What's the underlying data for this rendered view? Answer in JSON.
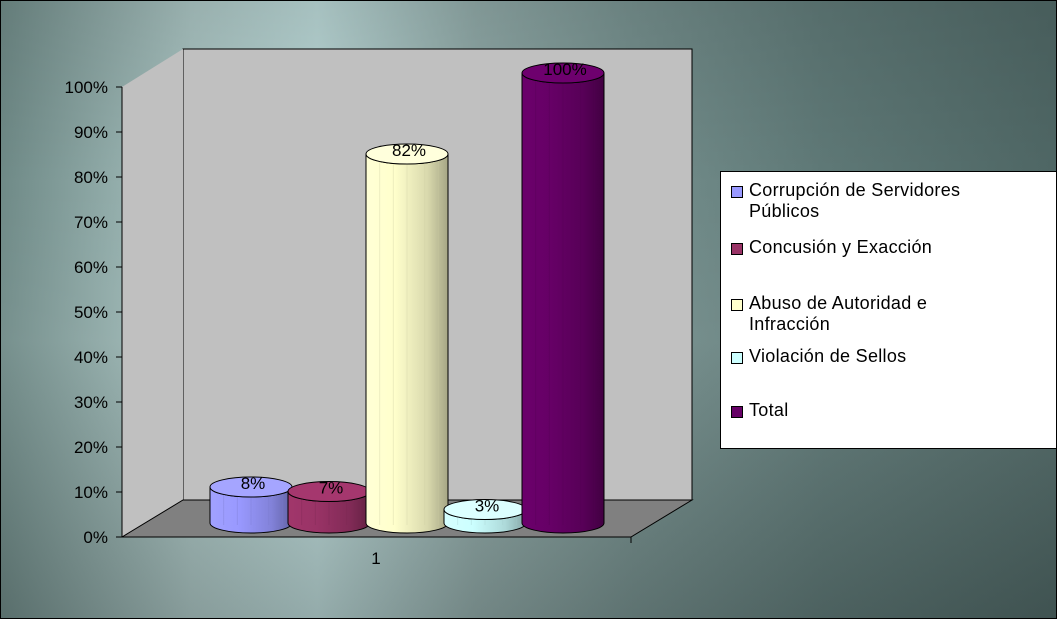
{
  "chart_data": {
    "type": "bar",
    "categories": [
      "1"
    ],
    "series": [
      {
        "name": "Corrupción de Servidores Públicos",
        "values": [
          8
        ],
        "label": "8%",
        "color": "#9999ff"
      },
      {
        "name": "Concusión y Exacción",
        "values": [
          7
        ],
        "label": "7%",
        "color": "#993366"
      },
      {
        "name": "Abuso de Autoridad e Infracción",
        "values": [
          82
        ],
        "label": "82%",
        "color": "#ffffcc"
      },
      {
        "name": "Violación de Sellos",
        "values": [
          3
        ],
        "label": "3%",
        "color": "#ccffff"
      },
      {
        "name": "Total",
        "values": [
          100
        ],
        "label": "100%",
        "color": "#660066"
      }
    ],
    "yticks": [
      "0%",
      "10%",
      "20%",
      "30%",
      "40%",
      "50%",
      "60%",
      "70%",
      "80%",
      "90%",
      "100%"
    ],
    "ylim": [
      0,
      100
    ],
    "title": "",
    "xlabel": "",
    "ylabel": "",
    "legend_position": "right",
    "grid": false
  },
  "legend": {
    "items": [
      {
        "line1": "Corrupción de Servidores",
        "line2": "Públicos",
        "color": "#9999ff"
      },
      {
        "line1": "Concusión y Exacción",
        "line2": "",
        "color": "#993366"
      },
      {
        "line1": "Abuso de Autoridad e",
        "line2": "Infracción",
        "color": "#ffffcc"
      },
      {
        "line1": "Violación de Sellos",
        "line2": "",
        "color": "#ccffff"
      },
      {
        "line1": "Total",
        "line2": "",
        "color": "#660066"
      }
    ]
  }
}
